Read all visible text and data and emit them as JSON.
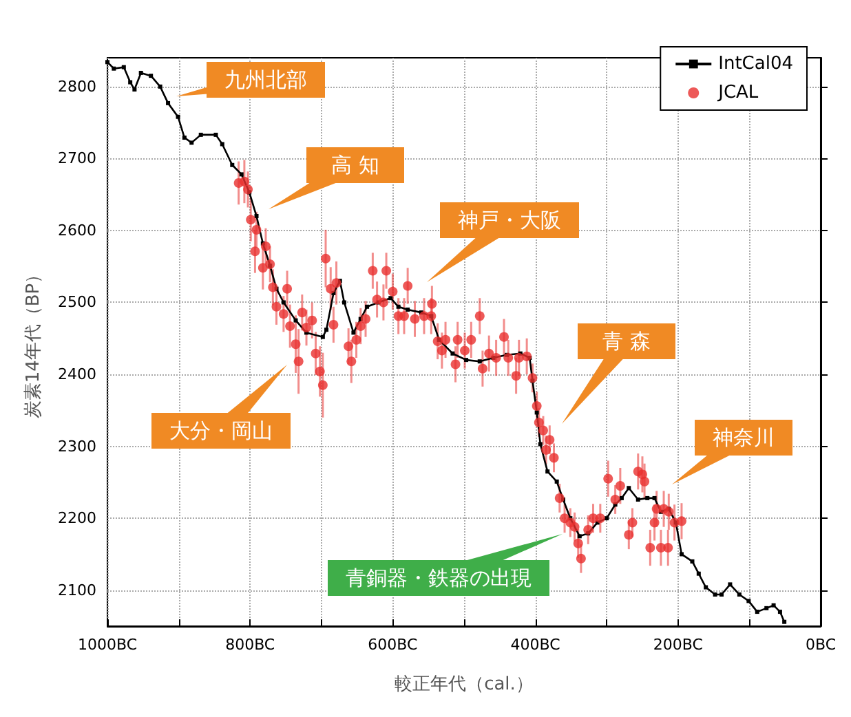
{
  "chart_data": {
    "type": "scatter",
    "xlabel": "較正年代（cal.）",
    "ylabel": "炭素14年代（BP）",
    "xlim": [
      -1000,
      0
    ],
    "ylim": [
      2050,
      2840
    ],
    "xticks": [
      {
        "value": -1000,
        "label": "1000BC"
      },
      {
        "value": -900,
        "label": null
      },
      {
        "value": -800,
        "label": "800BC"
      },
      {
        "value": -700,
        "label": null
      },
      {
        "value": -600,
        "label": "600BC"
      },
      {
        "value": -500,
        "label": null
      },
      {
        "value": -400,
        "label": "400BC"
      },
      {
        "value": -300,
        "label": null
      },
      {
        "value": -200,
        "label": "200BC"
      },
      {
        "value": -100,
        "label": null
      },
      {
        "value": 0,
        "label": "0BC"
      }
    ],
    "yticks": [
      2100,
      2200,
      2300,
      2400,
      2500,
      2600,
      2700,
      2800
    ],
    "grid": true,
    "legend": "top right",
    "series": [
      {
        "name": "IntCal04",
        "type": "line",
        "marker": "square",
        "color": "#000000",
        "x": [
          -1000,
          -991,
          -977,
          -968,
          -962,
          -953,
          -939,
          -926,
          -915,
          -901,
          -892,
          -882,
          -869,
          -848,
          -839,
          -825,
          -812,
          -801,
          -791,
          -782,
          -772,
          -763,
          -753,
          -736,
          -721,
          -698,
          -693,
          -683,
          -674,
          -668,
          -655,
          -645,
          -636,
          -620,
          -603,
          -592,
          -579,
          -560,
          -546,
          -535,
          -516,
          -497,
          -478,
          -459,
          -440,
          -421,
          -408,
          -404,
          -398,
          -393,
          -383,
          -370,
          -361,
          -351,
          -338,
          -326,
          -313,
          -300,
          -288,
          -279,
          -269,
          -256,
          -243,
          -233,
          -224,
          -213,
          -203,
          -195,
          -180,
          -171,
          -161,
          -148,
          -139,
          -127,
          -114,
          -101,
          -89,
          -76,
          -66,
          -57,
          -51
        ],
        "values": [
          2834,
          2825,
          2827,
          2806,
          2796,
          2819,
          2815,
          2800,
          2777,
          2758,
          2729,
          2722,
          2733,
          2733,
          2720,
          2691,
          2678,
          2653,
          2620,
          2582,
          2551,
          2519,
          2500,
          2475,
          2458,
          2452,
          2462,
          2513,
          2530,
          2500,
          2458,
          2477,
          2494,
          2500,
          2506,
          2494,
          2490,
          2486,
          2481,
          2448,
          2429,
          2420,
          2418,
          2423,
          2427,
          2429,
          2423,
          2391,
          2347,
          2303,
          2265,
          2251,
          2226,
          2200,
          2175,
          2179,
          2194,
          2200,
          2219,
          2228,
          2242,
          2226,
          2228,
          2228,
          2209,
          2213,
          2194,
          2150,
          2140,
          2123,
          2104,
          2094,
          2094,
          2108,
          2094,
          2085,
          2070,
          2075,
          2079,
          2070,
          2056
        ]
      },
      {
        "name": "JCAL",
        "marker": "circle",
        "color": "#e8302e",
        "x": [
          -816,
          -808,
          -803,
          -799,
          -791,
          -793,
          -778,
          -782,
          -772,
          -768,
          -763,
          -753,
          -748,
          -744,
          -736,
          -732,
          -727,
          -721,
          -713,
          -708,
          -702,
          -698,
          -694,
          -687,
          -683,
          -679,
          -662,
          -658,
          -651,
          -645,
          -638,
          -628,
          -622,
          -613,
          -609,
          -600,
          -592,
          -584,
          -579,
          -569,
          -556,
          -546,
          -545,
          -537,
          -531,
          -526,
          -512,
          -509,
          -499,
          -490,
          -478,
          -474,
          -465,
          -455,
          -444,
          -438,
          -427,
          -423,
          -412,
          -404,
          -398,
          -395,
          -389,
          -385,
          -380,
          -374,
          -366,
          -359,
          -351,
          -345,
          -340,
          -336,
          -326,
          -319,
          -309,
          -298,
          -288,
          -281,
          -269,
          -264,
          -256,
          -250,
          -247,
          -239,
          -233,
          -230,
          -224,
          -220,
          -214,
          -213,
          -205,
          -195
        ],
        "values": [
          2666,
          2668,
          2657,
          2615,
          2601,
          2571,
          2578,
          2548,
          2553,
          2521,
          2494,
          2484,
          2519,
          2467,
          2442,
          2418,
          2486,
          2465,
          2475,
          2429,
          2404,
          2385,
          2561,
          2519,
          2469,
          2527,
          2439,
          2418,
          2448,
          2467,
          2477,
          2544,
          2504,
          2500,
          2544,
          2515,
          2481,
          2481,
          2523,
          2477,
          2481,
          2481,
          2498,
          2446,
          2433,
          2448,
          2414,
          2448,
          2433,
          2448,
          2481,
          2408,
          2429,
          2423,
          2452,
          2423,
          2398,
          2423,
          2425,
          2395,
          2356,
          2333,
          2322,
          2295,
          2309,
          2284,
          2228,
          2200,
          2194,
          2188,
          2165,
          2144,
          2184,
          2200,
          2200,
          2255,
          2226,
          2245,
          2177,
          2194,
          2265,
          2261,
          2251,
          2159,
          2194,
          2213,
          2159,
          2213,
          2159,
          2209,
          2194,
          2196
        ],
        "errors": [
          30,
          30,
          25,
          30,
          25,
          30,
          25,
          30,
          25,
          25,
          25,
          25,
          25,
          30,
          40,
          45,
          25,
          25,
          25,
          30,
          35,
          45,
          40,
          30,
          25,
          30,
          25,
          30,
          25,
          25,
          25,
          25,
          25,
          25,
          25,
          25,
          25,
          25,
          25,
          25,
          25,
          25,
          25,
          25,
          25,
          25,
          25,
          25,
          25,
          25,
          25,
          25,
          25,
          25,
          25,
          25,
          25,
          25,
          25,
          20,
          20,
          20,
          20,
          20,
          20,
          20,
          20,
          20,
          20,
          20,
          20,
          20,
          20,
          20,
          20,
          25,
          20,
          25,
          20,
          20,
          25,
          25,
          25,
          25,
          25,
          25,
          25,
          25,
          25,
          25,
          25,
          25
        ]
      }
    ],
    "annotations": [
      "九州北部",
      "高 知",
      "神戸・大阪",
      "大分・岡山",
      "青 森",
      "神奈川",
      "青銅器・鉄器の出現"
    ]
  }
}
